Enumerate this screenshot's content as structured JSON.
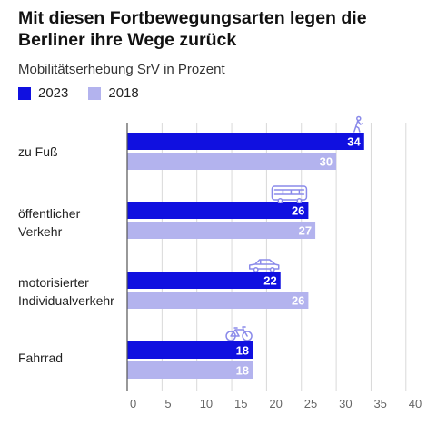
{
  "title": "Mit diesen Fortbewegungsarten legen die Berliner ihre Wege zurück",
  "subtitle": "Mobilitätserhebung SrV in Prozent",
  "legend": [
    {
      "label": "2023",
      "color": "#1010e0"
    },
    {
      "label": "2018",
      "color": "#b3b3ee"
    }
  ],
  "chart_data": {
    "type": "bar",
    "orientation": "horizontal",
    "categories": [
      "zu Fuß",
      "öffentlicher Verkehr",
      "motorisierter Individualverkehr",
      "Fahrrad"
    ],
    "category_lines": [
      [
        "zu Fuß"
      ],
      [
        "öffentlicher",
        "Verkehr"
      ],
      [
        "motorisierter",
        "Individualverkehr"
      ],
      [
        "Fahrrad"
      ]
    ],
    "category_icons": [
      "pedestrian-icon",
      "bus-icon",
      "car-icon",
      "bicycle-icon"
    ],
    "series": [
      {
        "name": "2023",
        "color": "#1010e0",
        "values": [
          34,
          26,
          22,
          18
        ]
      },
      {
        "name": "2018",
        "color": "#b3b3ee",
        "values": [
          30,
          27,
          26,
          18
        ]
      }
    ],
    "xlim": [
      0,
      40
    ],
    "xticks": [
      0,
      5,
      10,
      15,
      20,
      25,
      30,
      35,
      40
    ],
    "grid": true,
    "legend_position": "top-left"
  }
}
